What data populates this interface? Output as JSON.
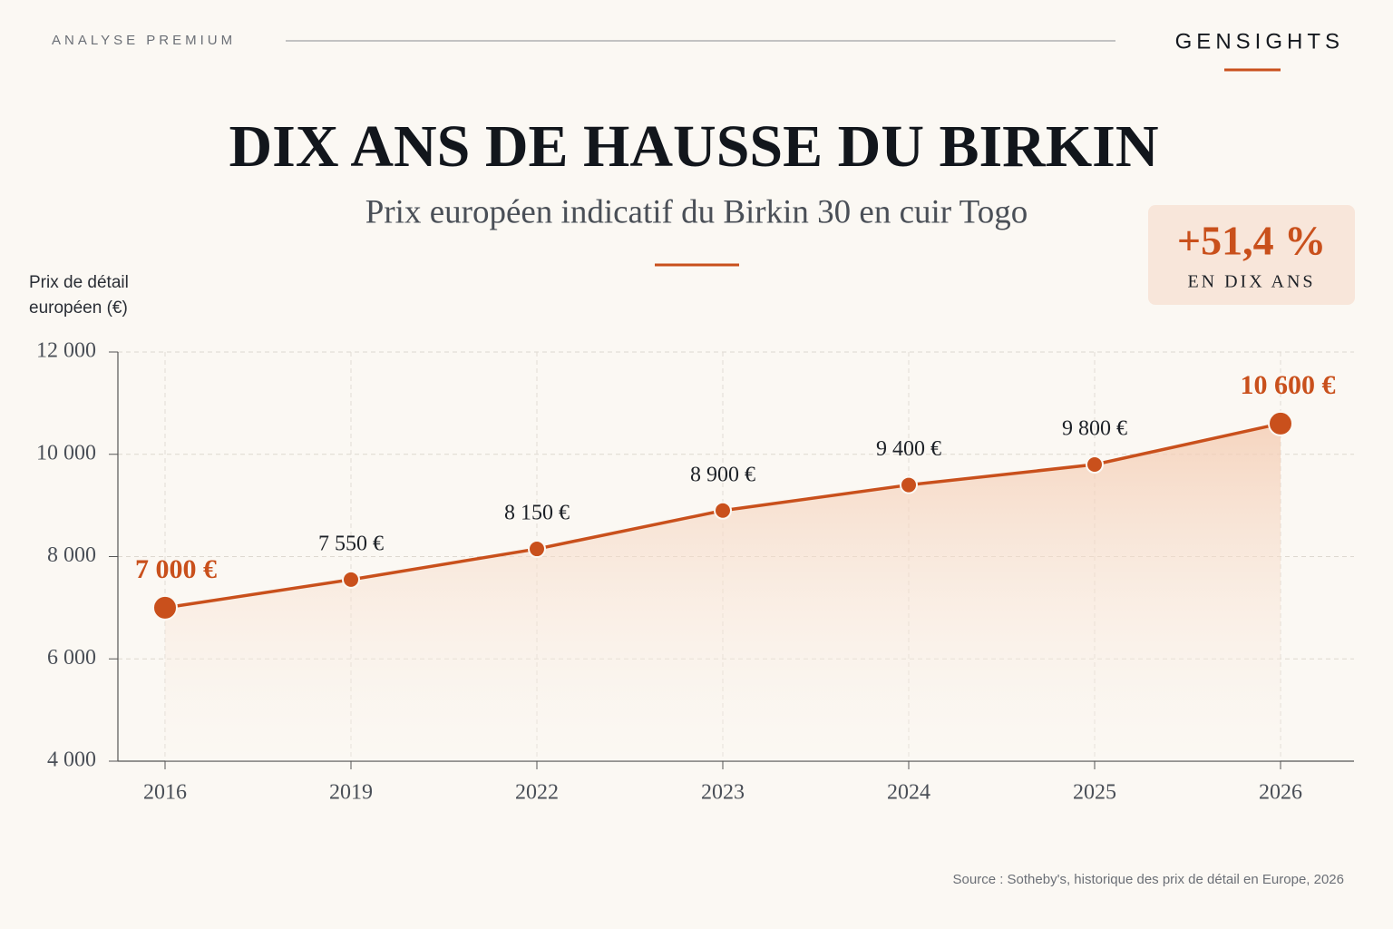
{
  "header": {
    "kicker": "ANALYSE PREMIUM",
    "brand": "GENSIGHTS"
  },
  "chart_data": {
    "type": "line",
    "title": "DIX ANS DE HAUSSE DU BIRKIN",
    "subtitle": "Prix européen indicatif du Birkin 30 en cuir Togo",
    "y_label": "Prix de détail européen (€)",
    "annotation": {
      "value_text": "+51,4 %",
      "caption": "EN DIX ANS"
    },
    "categories": [
      "2016",
      "2019",
      "2022",
      "2023",
      "2024",
      "2025",
      "2026"
    ],
    "series": [
      {
        "name": "Prix",
        "color": "#c9501c",
        "values": [
          7000,
          7550,
          8150,
          8900,
          9400,
          9800,
          10600
        ],
        "value_labels": [
          "7 000 €",
          "7 550 €",
          "8 150 €",
          "8 900 €",
          "9 400 €",
          "9 800 €",
          "10 600 €"
        ]
      }
    ],
    "ylim": [
      4000,
      12000
    ],
    "yticks": [
      {
        "value": 4000,
        "label": "4 000"
      },
      {
        "value": 6000,
        "label": "6 000"
      },
      {
        "value": 8000,
        "label": "8 000"
      },
      {
        "value": 10000,
        "label": "10 000"
      },
      {
        "value": 12000,
        "label": "12 000"
      }
    ],
    "grid": true,
    "source": "Source : Sotheby's, historique des prix de détail en Europe, 2026"
  }
}
